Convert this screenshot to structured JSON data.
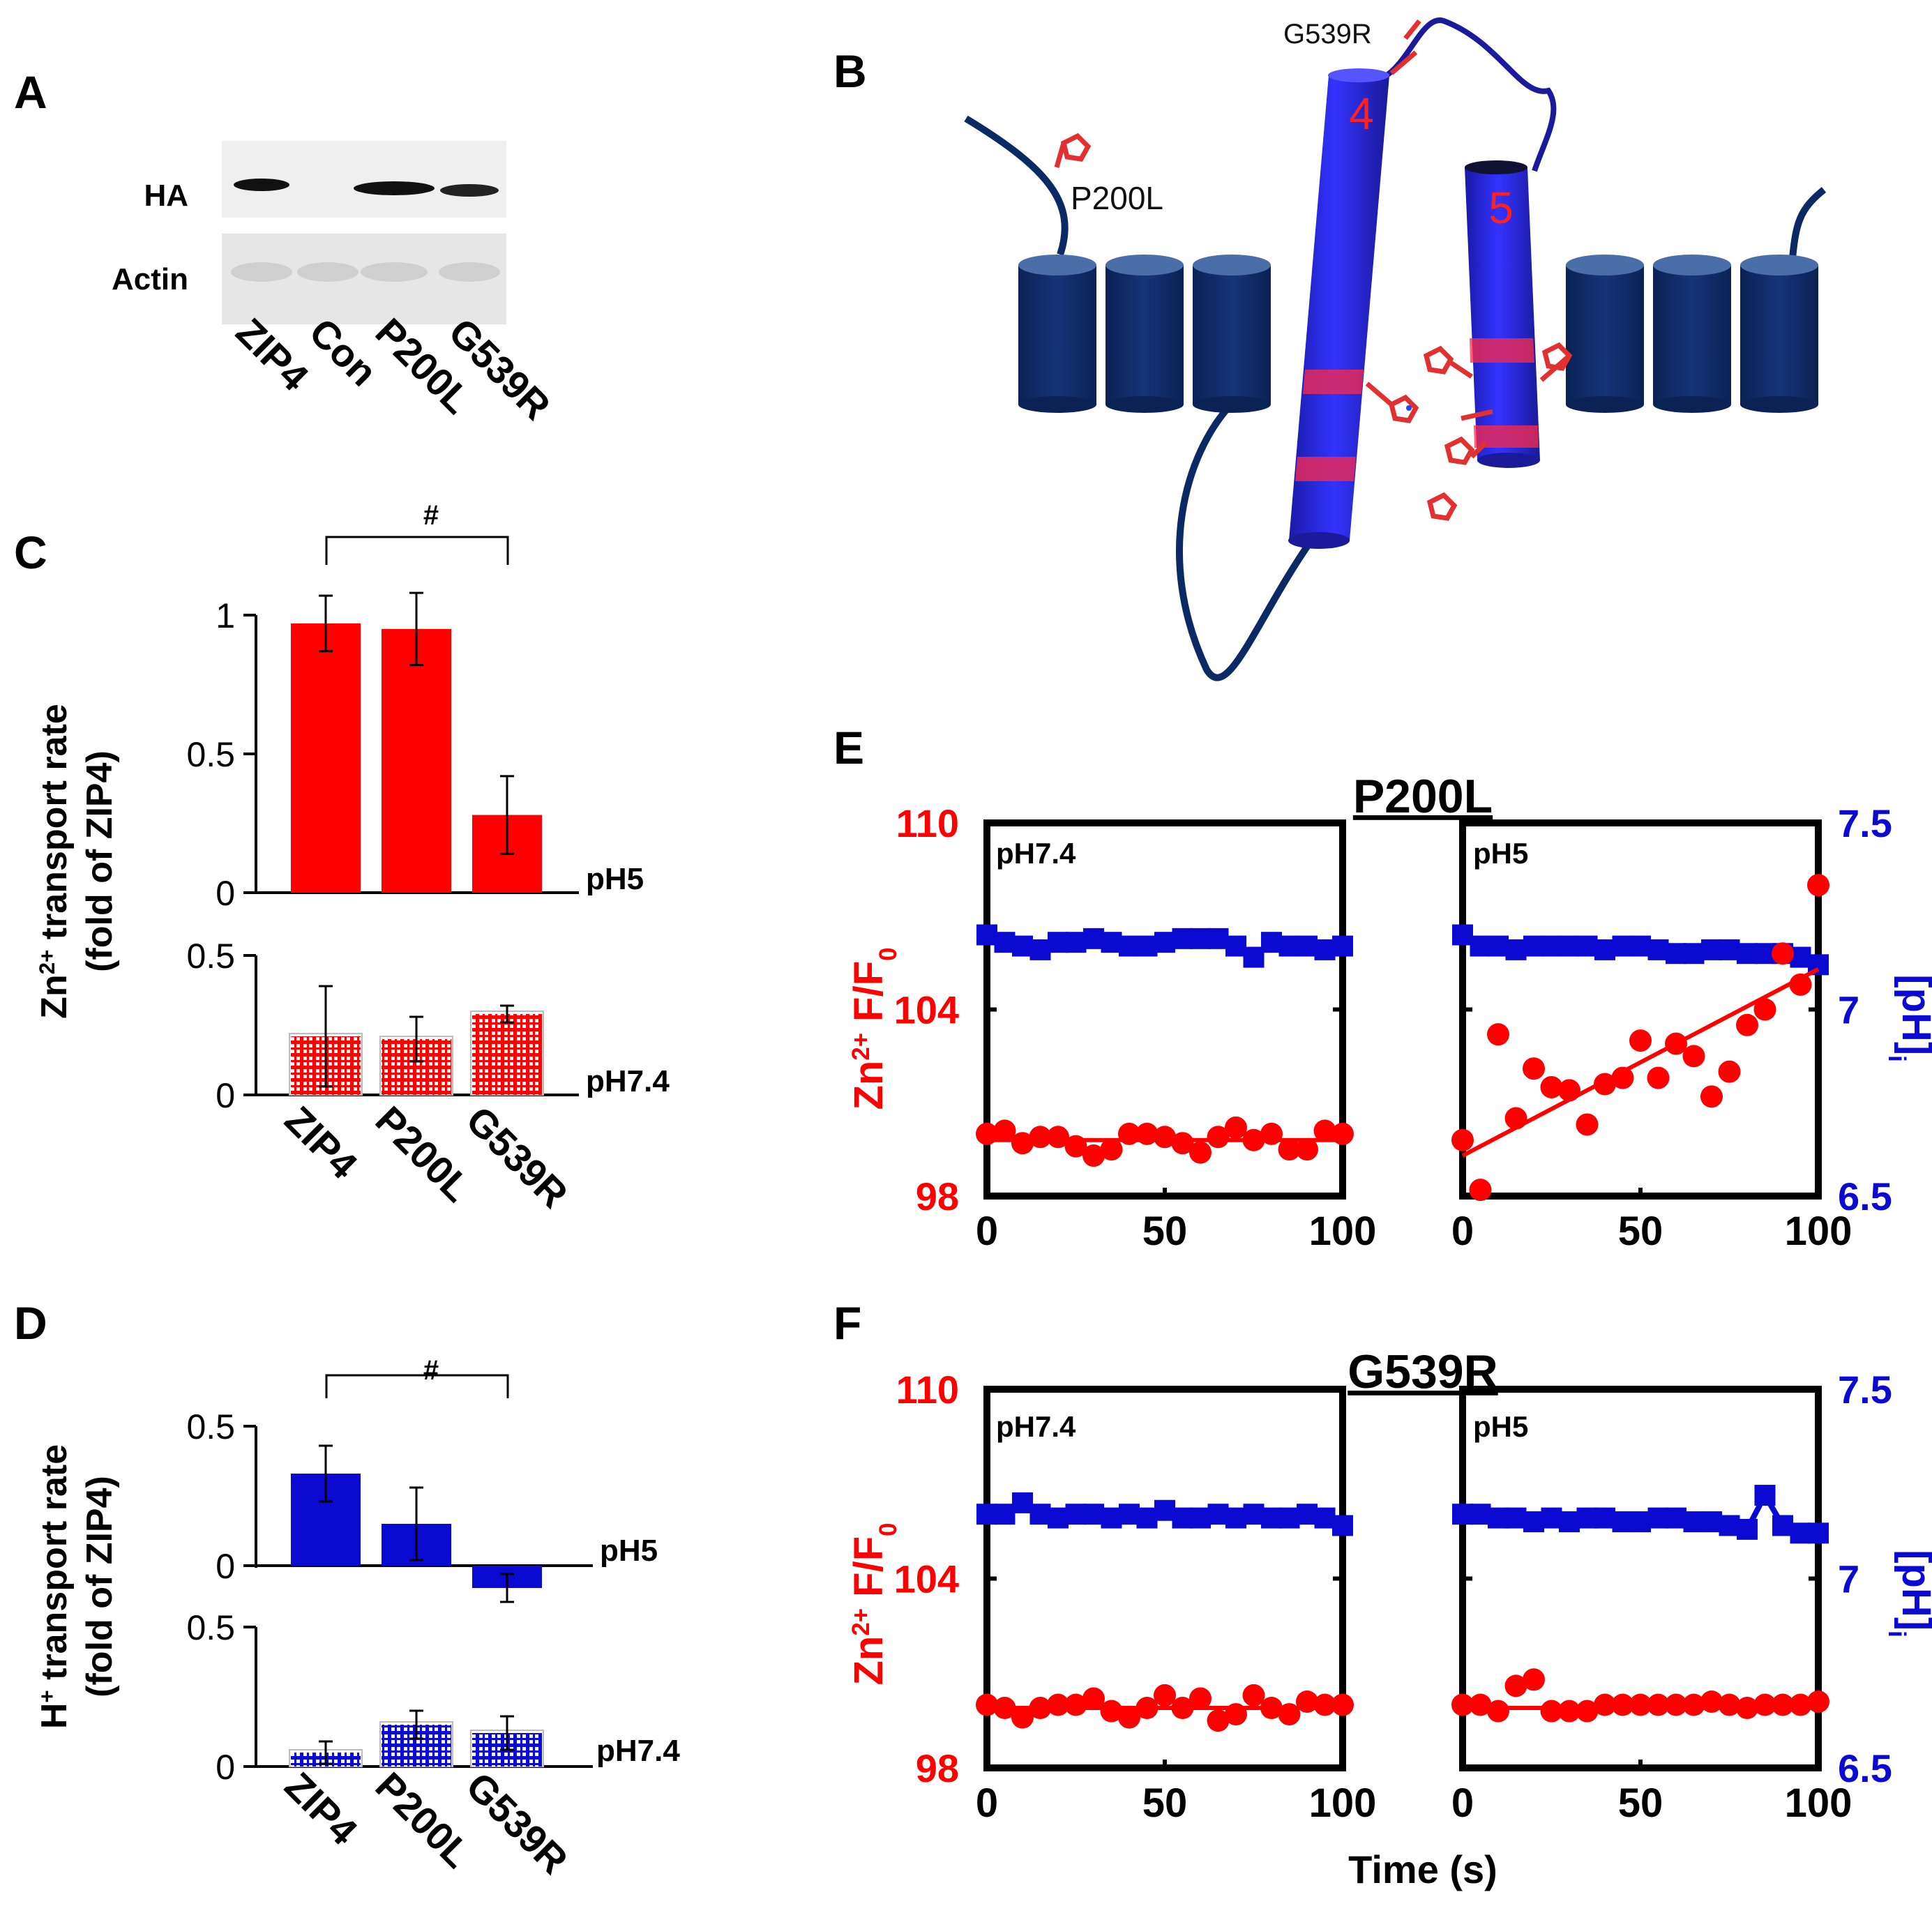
{
  "colors": {
    "red": "#ff0000",
    "blue": "#0a0ad2",
    "navy": "#0b2a63",
    "black": "#000000"
  },
  "panelA": {
    "letter": "A",
    "bands": [
      "HA",
      "Actin"
    ],
    "lanes": [
      "ZIP4",
      "Con",
      "P200L",
      "G539R"
    ]
  },
  "panelB": {
    "letter": "B",
    "helix4": "4",
    "helix5": "5",
    "mutation1": "P200L",
    "mutation2": "G539R"
  },
  "panelC": {
    "letter": "C",
    "ylabel_line1": "Zn2+ transport rate",
    "ylabel_line2": "(fold of ZIP4)",
    "sig": "#",
    "top_condition": "pH5",
    "bottom_condition": "pH7.4"
  },
  "panelD": {
    "letter": "D",
    "ylabel_line1": "H+ transport rate",
    "ylabel_line2": "(fold of ZIP4)",
    "sig": "#",
    "top_condition": "pH5",
    "bottom_condition": "pH7.4"
  },
  "panelE": {
    "letter": "E",
    "title": "P200L",
    "left_label": "pH7.4",
    "right_label": "pH5",
    "yleft_label": "Zn2+ F/F0",
    "yright_label": "[pH]i"
  },
  "panelF": {
    "letter": "F",
    "title": "G539R",
    "left_label": "pH7.4",
    "right_label": "pH5",
    "yleft_label": "Zn2+ F/F0",
    "yright_label": "[pH]i",
    "xlabel": "Time (s)"
  },
  "chart_data": [
    {
      "id": "C-pH5",
      "type": "bar",
      "categories": [
        "ZIP4",
        "P200L",
        "G539R"
      ],
      "values": [
        0.97,
        0.95,
        0.28
      ],
      "errors": [
        0.1,
        0.13,
        0.14
      ],
      "ylim": [
        0,
        1
      ],
      "yticks": [
        "0",
        "0.5",
        "1"
      ],
      "condition": "pH5",
      "color": "red",
      "ylabel": "Zn2+ transport rate (fold of ZIP4)"
    },
    {
      "id": "C-pH7.4",
      "type": "bar",
      "categories": [
        "ZIP4",
        "P200L",
        "G539R"
      ],
      "values": [
        0.21,
        0.2,
        0.29
      ],
      "errors": [
        0.18,
        0.08,
        0.03
      ],
      "ylim": [
        0,
        0.5
      ],
      "yticks": [
        "0",
        "0.5"
      ],
      "condition": "pH7.4",
      "color": "red",
      "pattern": "grid"
    },
    {
      "id": "D-pH5",
      "type": "bar",
      "categories": [
        "ZIP4",
        "P200L",
        "G539R"
      ],
      "values": [
        0.33,
        0.15,
        -0.08
      ],
      "errors": [
        0.1,
        0.13,
        0.05
      ],
      "ylim": [
        -0.1,
        0.5
      ],
      "yticks": [
        "0",
        "0.5"
      ],
      "condition": "pH5",
      "color": "blue",
      "ylabel": "H+ transport rate (fold of ZIP4)"
    },
    {
      "id": "D-pH7.4",
      "type": "bar",
      "categories": [
        "ZIP4",
        "P200L",
        "G539R"
      ],
      "values": [
        0.05,
        0.15,
        0.12
      ],
      "errors": [
        0.04,
        0.05,
        0.06
      ],
      "ylim": [
        0,
        0.5
      ],
      "yticks": [
        "0",
        "0.5"
      ],
      "condition": "pH7.4",
      "color": "blue",
      "pattern": "grid"
    },
    {
      "id": "E-pH7.4",
      "type": "scatter",
      "xlim": [
        0,
        100
      ],
      "xticks": [
        "0",
        "50",
        "100"
      ],
      "ylim": [
        98,
        110
      ],
      "yticks": [
        "98",
        "104",
        "110"
      ],
      "y2lim": [
        6.5,
        7.5
      ],
      "y2ticks": [
        "6.5",
        "7",
        "7.5"
      ],
      "zn": [
        [
          0,
          100.0
        ],
        [
          5,
          100.1
        ],
        [
          10,
          99.7
        ],
        [
          15,
          99.9
        ],
        [
          20,
          99.9
        ],
        [
          25,
          99.6
        ],
        [
          30,
          99.3
        ],
        [
          35,
          99.5
        ],
        [
          40,
          100.0
        ],
        [
          45,
          100.0
        ],
        [
          50,
          99.9
        ],
        [
          55,
          99.7
        ],
        [
          60,
          99.4
        ],
        [
          65,
          99.9
        ],
        [
          70,
          100.2
        ],
        [
          75,
          99.8
        ],
        [
          80,
          100.0
        ],
        [
          85,
          99.5
        ],
        [
          90,
          99.5
        ],
        [
          95,
          100.1
        ],
        [
          100,
          100.0
        ]
      ],
      "zn_fit": [
        [
          0,
          99.8
        ],
        [
          100,
          99.8
        ]
      ],
      "ph": [
        [
          0,
          7.2
        ],
        [
          5,
          7.18
        ],
        [
          10,
          7.17
        ],
        [
          15,
          7.16
        ],
        [
          20,
          7.18
        ],
        [
          25,
          7.18
        ],
        [
          30,
          7.19
        ],
        [
          35,
          7.18
        ],
        [
          40,
          7.17
        ],
        [
          45,
          7.17
        ],
        [
          50,
          7.18
        ],
        [
          55,
          7.19
        ],
        [
          60,
          7.19
        ],
        [
          65,
          7.19
        ],
        [
          70,
          7.17
        ],
        [
          75,
          7.14
        ],
        [
          80,
          7.18
        ],
        [
          85,
          7.17
        ],
        [
          90,
          7.17
        ],
        [
          95,
          7.16
        ],
        [
          100,
          7.17
        ]
      ]
    },
    {
      "id": "E-pH5",
      "type": "scatter",
      "xlim": [
        0,
        100
      ],
      "xticks": [
        "0",
        "50",
        "100"
      ],
      "ylim": [
        98,
        110
      ],
      "yticks": [
        "98",
        "104",
        "110"
      ],
      "y2lim": [
        6.5,
        7.5
      ],
      "y2ticks": [
        "6.5",
        "7",
        "7.5"
      ],
      "zn": [
        [
          0,
          99.8
        ],
        [
          5,
          98.2
        ],
        [
          10,
          103.2
        ],
        [
          15,
          100.5
        ],
        [
          20,
          102.1
        ],
        [
          25,
          101.5
        ],
        [
          30,
          101.4
        ],
        [
          35,
          100.3
        ],
        [
          40,
          101.6
        ],
        [
          45,
          101.8
        ],
        [
          50,
          103.0
        ],
        [
          55,
          101.8
        ],
        [
          60,
          102.9
        ],
        [
          65,
          102.5
        ],
        [
          70,
          101.2
        ],
        [
          75,
          102.0
        ],
        [
          80,
          103.5
        ],
        [
          85,
          104.0
        ],
        [
          90,
          105.8
        ],
        [
          95,
          104.8
        ],
        [
          100,
          108.0
        ]
      ],
      "zn_fit": [
        [
          0,
          99.3
        ],
        [
          100,
          105.3
        ]
      ],
      "ph": [
        [
          0,
          7.2
        ],
        [
          5,
          7.17
        ],
        [
          10,
          7.17
        ],
        [
          15,
          7.16
        ],
        [
          20,
          7.17
        ],
        [
          25,
          7.17
        ],
        [
          30,
          7.17
        ],
        [
          35,
          7.17
        ],
        [
          40,
          7.16
        ],
        [
          45,
          7.17
        ],
        [
          50,
          7.17
        ],
        [
          55,
          7.16
        ],
        [
          60,
          7.15
        ],
        [
          65,
          7.15
        ],
        [
          70,
          7.16
        ],
        [
          75,
          7.16
        ],
        [
          80,
          7.15
        ],
        [
          85,
          7.15
        ],
        [
          90,
          7.15
        ],
        [
          95,
          7.14
        ],
        [
          100,
          7.12
        ]
      ]
    },
    {
      "id": "F-pH7.4",
      "type": "scatter",
      "xlim": [
        0,
        100
      ],
      "xticks": [
        "0",
        "50",
        "100"
      ],
      "ylim": [
        98,
        110
      ],
      "yticks": [
        "98",
        "104",
        "110"
      ],
      "y2lim": [
        6.5,
        7.5
      ],
      "y2ticks": [
        "6.5",
        "7",
        "7.5"
      ],
      "zn": [
        [
          0,
          100.0
        ],
        [
          5,
          99.9
        ],
        [
          10,
          99.6
        ],
        [
          15,
          99.9
        ],
        [
          20,
          100.0
        ],
        [
          25,
          100.0
        ],
        [
          30,
          100.2
        ],
        [
          35,
          99.8
        ],
        [
          40,
          99.6
        ],
        [
          45,
          99.9
        ],
        [
          50,
          100.3
        ],
        [
          55,
          99.9
        ],
        [
          60,
          100.2
        ],
        [
          65,
          99.5
        ],
        [
          70,
          99.7
        ],
        [
          75,
          100.3
        ],
        [
          80,
          99.9
        ],
        [
          85,
          99.7
        ],
        [
          90,
          100.1
        ],
        [
          95,
          100.0
        ],
        [
          100,
          100.0
        ]
      ],
      "zn_fit": [
        [
          0,
          99.9
        ],
        [
          100,
          99.9
        ]
      ],
      "ph": [
        [
          0,
          7.17
        ],
        [
          5,
          7.17
        ],
        [
          10,
          7.2
        ],
        [
          15,
          7.17
        ],
        [
          20,
          7.16
        ],
        [
          25,
          7.17
        ],
        [
          30,
          7.17
        ],
        [
          35,
          7.16
        ],
        [
          40,
          7.17
        ],
        [
          45,
          7.16
        ],
        [
          50,
          7.18
        ],
        [
          55,
          7.16
        ],
        [
          60,
          7.16
        ],
        [
          65,
          7.17
        ],
        [
          70,
          7.16
        ],
        [
          75,
          7.17
        ],
        [
          80,
          7.16
        ],
        [
          85,
          7.16
        ],
        [
          90,
          7.17
        ],
        [
          95,
          7.16
        ],
        [
          100,
          7.14
        ]
      ]
    },
    {
      "id": "F-pH5",
      "type": "scatter",
      "xlim": [
        0,
        100
      ],
      "xticks": [
        "0",
        "50",
        "100"
      ],
      "ylim": [
        98,
        110
      ],
      "yticks": [
        "98",
        "104",
        "110"
      ],
      "y2lim": [
        6.5,
        7.5
      ],
      "y2ticks": [
        "6.5",
        "7",
        "7.5"
      ],
      "zn": [
        [
          0,
          100.0
        ],
        [
          5,
          100.0
        ],
        [
          10,
          99.8
        ],
        [
          15,
          100.6
        ],
        [
          20,
          100.8
        ],
        [
          25,
          99.8
        ],
        [
          30,
          99.8
        ],
        [
          35,
          99.8
        ],
        [
          40,
          100.0
        ],
        [
          45,
          100.0
        ],
        [
          50,
          100.0
        ],
        [
          55,
          100.0
        ],
        [
          60,
          100.0
        ],
        [
          65,
          100.0
        ],
        [
          70,
          100.1
        ],
        [
          75,
          100.0
        ],
        [
          80,
          99.9
        ],
        [
          85,
          100.0
        ],
        [
          90,
          100.0
        ],
        [
          95,
          100.0
        ],
        [
          100,
          100.1
        ]
      ],
      "zn_fit": [
        [
          0,
          99.9
        ],
        [
          100,
          99.9
        ]
      ],
      "ph": [
        [
          0,
          7.17
        ],
        [
          5,
          7.17
        ],
        [
          10,
          7.16
        ],
        [
          15,
          7.16
        ],
        [
          20,
          7.15
        ],
        [
          25,
          7.16
        ],
        [
          30,
          7.15
        ],
        [
          35,
          7.16
        ],
        [
          40,
          7.16
        ],
        [
          45,
          7.15
        ],
        [
          50,
          7.15
        ],
        [
          55,
          7.16
        ],
        [
          60,
          7.16
        ],
        [
          65,
          7.15
        ],
        [
          70,
          7.15
        ],
        [
          75,
          7.14
        ],
        [
          80,
          7.13
        ],
        [
          85,
          7.22
        ],
        [
          90,
          7.14
        ],
        [
          95,
          7.12
        ],
        [
          100,
          7.12
        ]
      ]
    }
  ]
}
